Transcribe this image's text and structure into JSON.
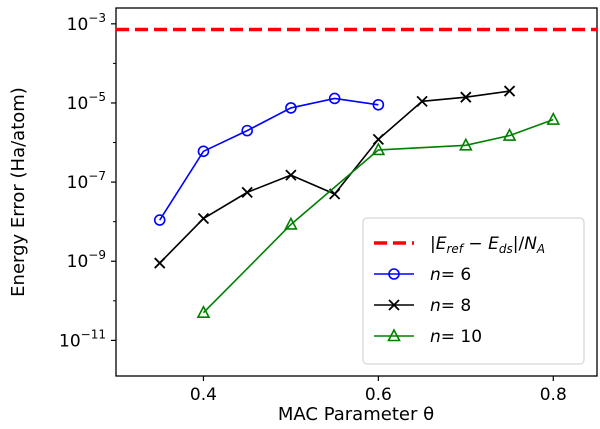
{
  "chart_data": {
    "type": "line",
    "xlabel": "MAC Parameter θ",
    "ylabel": "Energy Error (Ha/atom)",
    "xlim": [
      0.3,
      0.85
    ],
    "ylim_log10": [
      -11.9,
      -2.6
    ],
    "yscale": "log",
    "grid": false,
    "legend_position": "lower-right",
    "x_ticks": [
      {
        "value": 0.4,
        "label": "0.4"
      },
      {
        "value": 0.6,
        "label": "0.6"
      },
      {
        "value": 0.8,
        "label": "0.8"
      }
    ],
    "y_ticks": [
      {
        "exp": -3,
        "base": "10",
        "sup": "−3"
      },
      {
        "exp": -5,
        "base": "10",
        "sup": "−5"
      },
      {
        "exp": -7,
        "base": "10",
        "sup": "−7"
      },
      {
        "exp": -9,
        "base": "10",
        "sup": "−9"
      },
      {
        "exp": -11,
        "base": "10",
        "sup": "−11"
      }
    ],
    "reference_line": {
      "y": 0.00072,
      "color": "#ff0000",
      "style": "dashed",
      "legend": "|E_ref − E_ds|/N_A"
    },
    "series": [
      {
        "name": "n= 6",
        "color": "#0000ff",
        "marker": "circle",
        "x": [
          0.35,
          0.4,
          0.45,
          0.5,
          0.55,
          0.6
        ],
        "y": [
          1.1e-08,
          6e-07,
          2e-06,
          7.5e-06,
          1.3e-05,
          9e-06
        ]
      },
      {
        "name": "n= 8",
        "color": "#000000",
        "marker": "x",
        "x": [
          0.35,
          0.4,
          0.45,
          0.5,
          0.55,
          0.6,
          0.65,
          0.7,
          0.75
        ],
        "y": [
          9e-10,
          1.2e-08,
          5.5e-08,
          1.5e-07,
          5e-08,
          1.2e-06,
          1.1e-05,
          1.4e-05,
          2e-05
        ]
      },
      {
        "name": "n= 10",
        "color": "#008000",
        "marker": "triangle",
        "x": [
          0.4,
          0.5,
          0.6,
          0.7,
          0.75,
          0.8
        ],
        "y": [
          5e-11,
          8.5e-09,
          6.5e-07,
          8.5e-07,
          1.5e-06,
          3.8e-06
        ]
      }
    ]
  }
}
